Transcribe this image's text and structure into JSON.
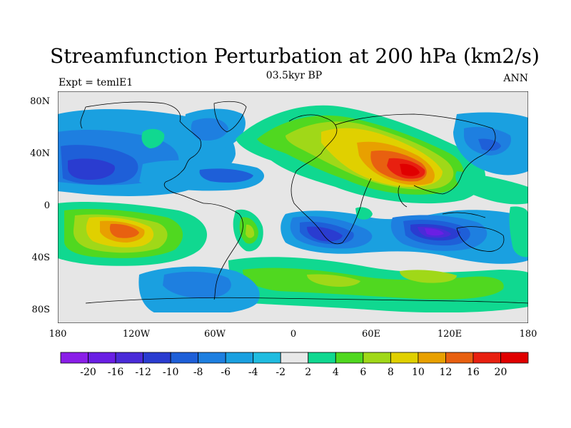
{
  "title": "Streamfunction Perturbation at 200 hPa (km2/s)",
  "subtitle_left": "Expt = temlE1",
  "subtitle_center": "03.5kyr BP",
  "subtitle_right": "ANN",
  "y_ticks": [
    "80N",
    "40N",
    "0",
    "40S",
    "80S"
  ],
  "x_ticks": [
    "180",
    "120W",
    "60W",
    "0",
    "60E",
    "120E",
    "180"
  ],
  "colorbar": {
    "labels": [
      "-20",
      "-16",
      "-12",
      "-10",
      "-8",
      "-6",
      "-4",
      "-2",
      "2",
      "4",
      "6",
      "8",
      "10",
      "12",
      "16",
      "20"
    ],
    "colors": [
      "#8a1ee8",
      "#6a1fe4",
      "#4a2bd8",
      "#2a3cd0",
      "#1e5fd8",
      "#1e7fe0",
      "#1aa0e0",
      "#20bce0",
      "#e8e8e8",
      "#10d890",
      "#50d820",
      "#a0d818",
      "#e0d000",
      "#e8a000",
      "#e86010",
      "#e82010",
      "#e00000"
    ]
  },
  "colors": {
    "ocean_bg": "#e6e6e6",
    "coast": "#000000"
  }
}
